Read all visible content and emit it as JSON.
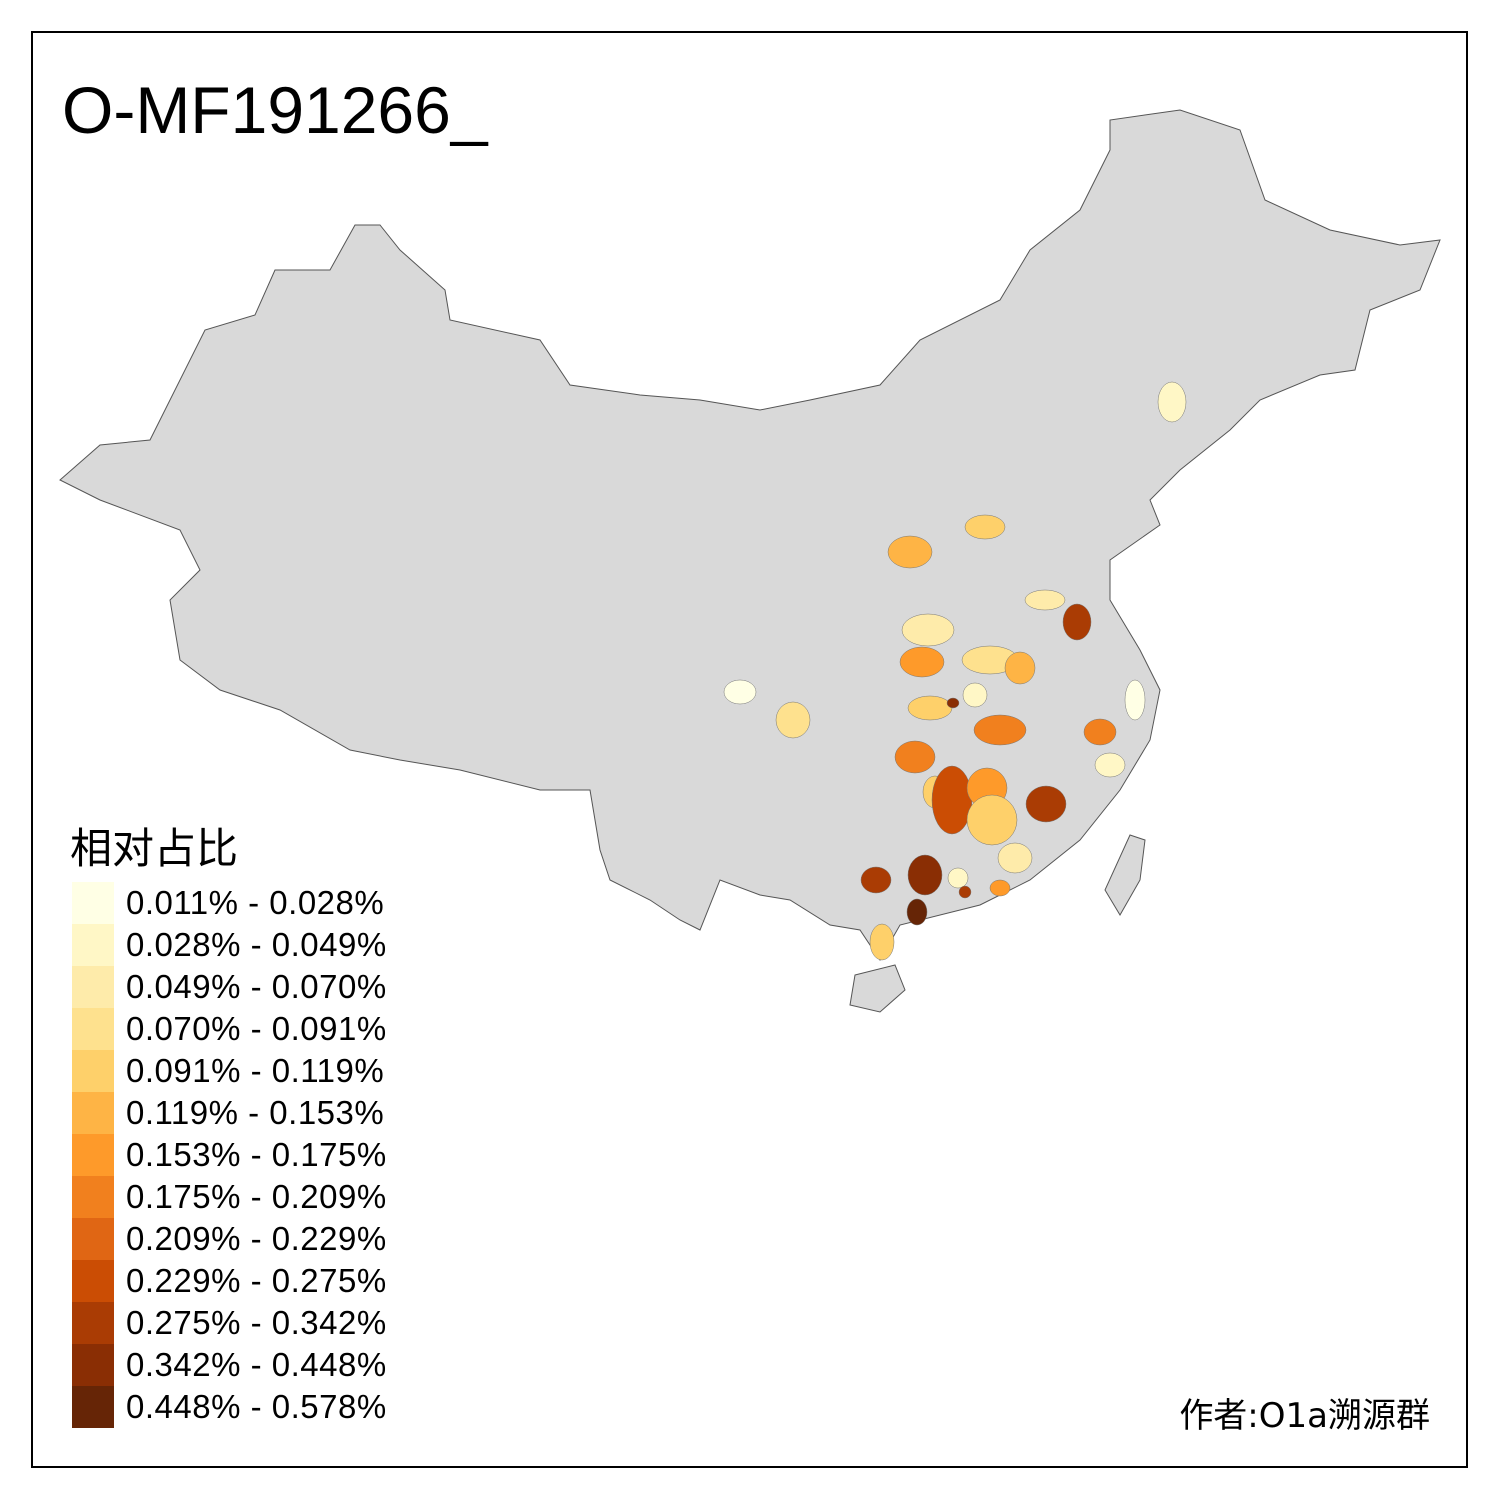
{
  "title": "O-MF191266_",
  "legend": {
    "title": "相对占比",
    "items": [
      {
        "label": "0.011% - 0.028%",
        "color": "#FFFFE5"
      },
      {
        "label": "0.028% - 0.049%",
        "color": "#FFF7C6"
      },
      {
        "label": "0.049% - 0.070%",
        "color": "#FEEBAA"
      },
      {
        "label": "0.070% - 0.091%",
        "color": "#FEE18E"
      },
      {
        "label": "0.091% - 0.119%",
        "color": "#FED06A"
      },
      {
        "label": "0.119% - 0.153%",
        "color": "#FEB445"
      },
      {
        "label": "0.153% - 0.175%",
        "color": "#FE9A2A"
      },
      {
        "label": "0.175% - 0.209%",
        "color": "#F1801E"
      },
      {
        "label": "0.209% - 0.229%",
        "color": "#E06614"
      },
      {
        "label": "0.229% - 0.275%",
        "color": "#CB4D04"
      },
      {
        "label": "0.275% - 0.342%",
        "color": "#AA3C04"
      },
      {
        "label": "0.342% - 0.448%",
        "color": "#8A2E04"
      },
      {
        "label": "0.448% - 0.578%",
        "color": "#662506"
      }
    ]
  },
  "map": {
    "base_color": "#D9D9D9",
    "border_color": "#555555"
  },
  "author": "作者:O1a溯源群"
}
